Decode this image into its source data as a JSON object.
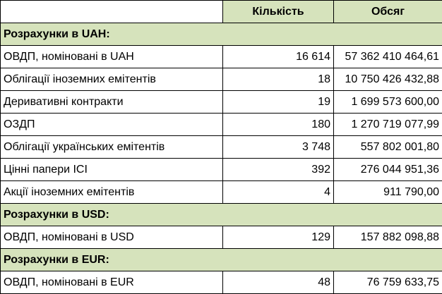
{
  "header": {
    "col_count": "Кількість",
    "col_volume": "Обсяг"
  },
  "sections": [
    {
      "title": "Розрахунки в UAH:",
      "rows": [
        {
          "name": "ОВДП, номіновані в UAH",
          "count": "16 614",
          "volume": "57 362 410 464,61"
        },
        {
          "name": "Облігації іноземних емітентів",
          "count": "18",
          "volume": "10 750 426 432,88"
        },
        {
          "name": "Деривативні контракти",
          "count": "19",
          "volume": "1 699 573 600,00"
        },
        {
          "name": "ОЗДП",
          "count": "180",
          "volume": "1 270 719 077,99"
        },
        {
          "name": "Облігації українських емітентів",
          "count": "3 748",
          "volume": "557 802 001,80"
        },
        {
          "name": "Цінні папери ICI",
          "count": "392",
          "volume": "276 044 951,36"
        },
        {
          "name": "Акції іноземних емітентів",
          "count": "4",
          "volume": "911 790,00"
        }
      ]
    },
    {
      "title": "Розрахунки в USD:",
      "rows": [
        {
          "name": "ОВДП, номіновані в USD",
          "count": "129",
          "volume": "157 882 098,88"
        }
      ]
    },
    {
      "title": "Розрахунки в EUR:",
      "rows": [
        {
          "name": "ОВДП, номіновані в EUR",
          "count": "48",
          "volume": "76 759 633,75"
        }
      ]
    }
  ],
  "colors": {
    "header_fill": "#d6e3bc",
    "section_fill": "#d6e3bc",
    "border": "#000000"
  }
}
